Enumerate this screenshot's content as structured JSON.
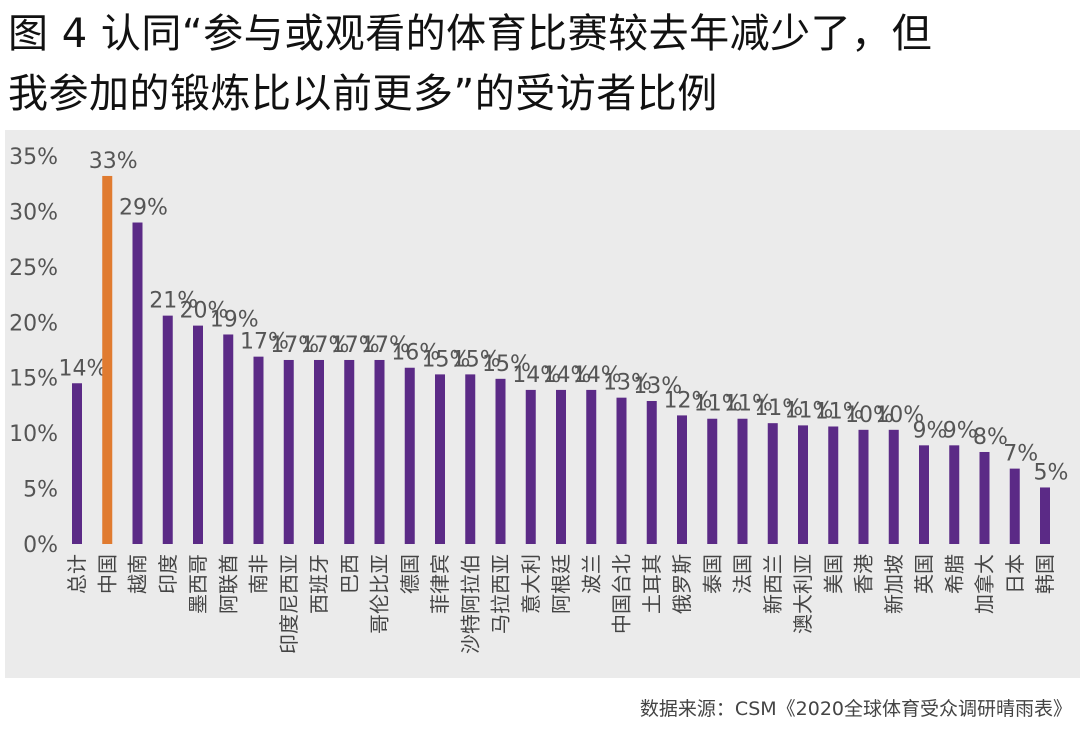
{
  "title": "图 4 认同“参与或观看的体育比赛较去年减少了，但\n我参加的锻炼比以前更多”的受访者比例",
  "source": "数据来源：CSM《2020全球体育受众调研晴雨表》",
  "colors": {
    "default_bar": "#5b2a86",
    "highlight_bar": "#e07b30",
    "background": "#ebebeb"
  },
  "chart_data": {
    "type": "bar",
    "title": "图 4 认同“参与或观看的体育比赛较去年减少了，但我参加的锻炼比以前更多”的受访者比例",
    "xlabel": "",
    "ylabel": "",
    "ylim": [
      0,
      35
    ],
    "yticks": [
      "0%",
      "5%",
      "10%",
      "15%",
      "20%",
      "25%",
      "30%",
      "35%"
    ],
    "grid": false,
    "highlight": "中国",
    "categories": [
      "总计",
      "中国",
      "越南",
      "印度",
      "墨西哥",
      "阿联酋",
      "南非",
      "印度尼西亚",
      "西班牙",
      "巴西",
      "哥伦比亚",
      "德国",
      "菲律宾",
      "沙特阿拉伯",
      "马拉西亚",
      "意大利",
      "阿根廷",
      "波兰",
      "中国台北",
      "土耳其",
      "俄罗斯",
      "泰国",
      "法国",
      "新西兰",
      "澳大利亚",
      "美国",
      "香港",
      "新加坡",
      "英国",
      "希腊",
      "加拿大",
      "日本",
      "韩国"
    ],
    "values": [
      14.5,
      33.2,
      29.0,
      20.6,
      19.7,
      18.9,
      16.9,
      16.6,
      16.6,
      16.6,
      16.6,
      15.9,
      15.3,
      15.3,
      14.9,
      13.9,
      13.9,
      13.9,
      13.2,
      12.9,
      11.6,
      11.3,
      11.3,
      10.9,
      10.7,
      10.6,
      10.3,
      10.3,
      8.9,
      8.9,
      8.3,
      6.8,
      5.1
    ],
    "labels": [
      "14%",
      "33%",
      "29%",
      "21%",
      "20%",
      "19%",
      "17%",
      "17%",
      "17%",
      "17%",
      "17%",
      "16%",
      "15%",
      "15%",
      "15%",
      "14%",
      "14%",
      "14%",
      "13%",
      "13%",
      "12%",
      "11%",
      "11%",
      "11%",
      "11%",
      "11%",
      "10%",
      "10%",
      "9%",
      "9%",
      "8%",
      "7%",
      "5%"
    ]
  }
}
